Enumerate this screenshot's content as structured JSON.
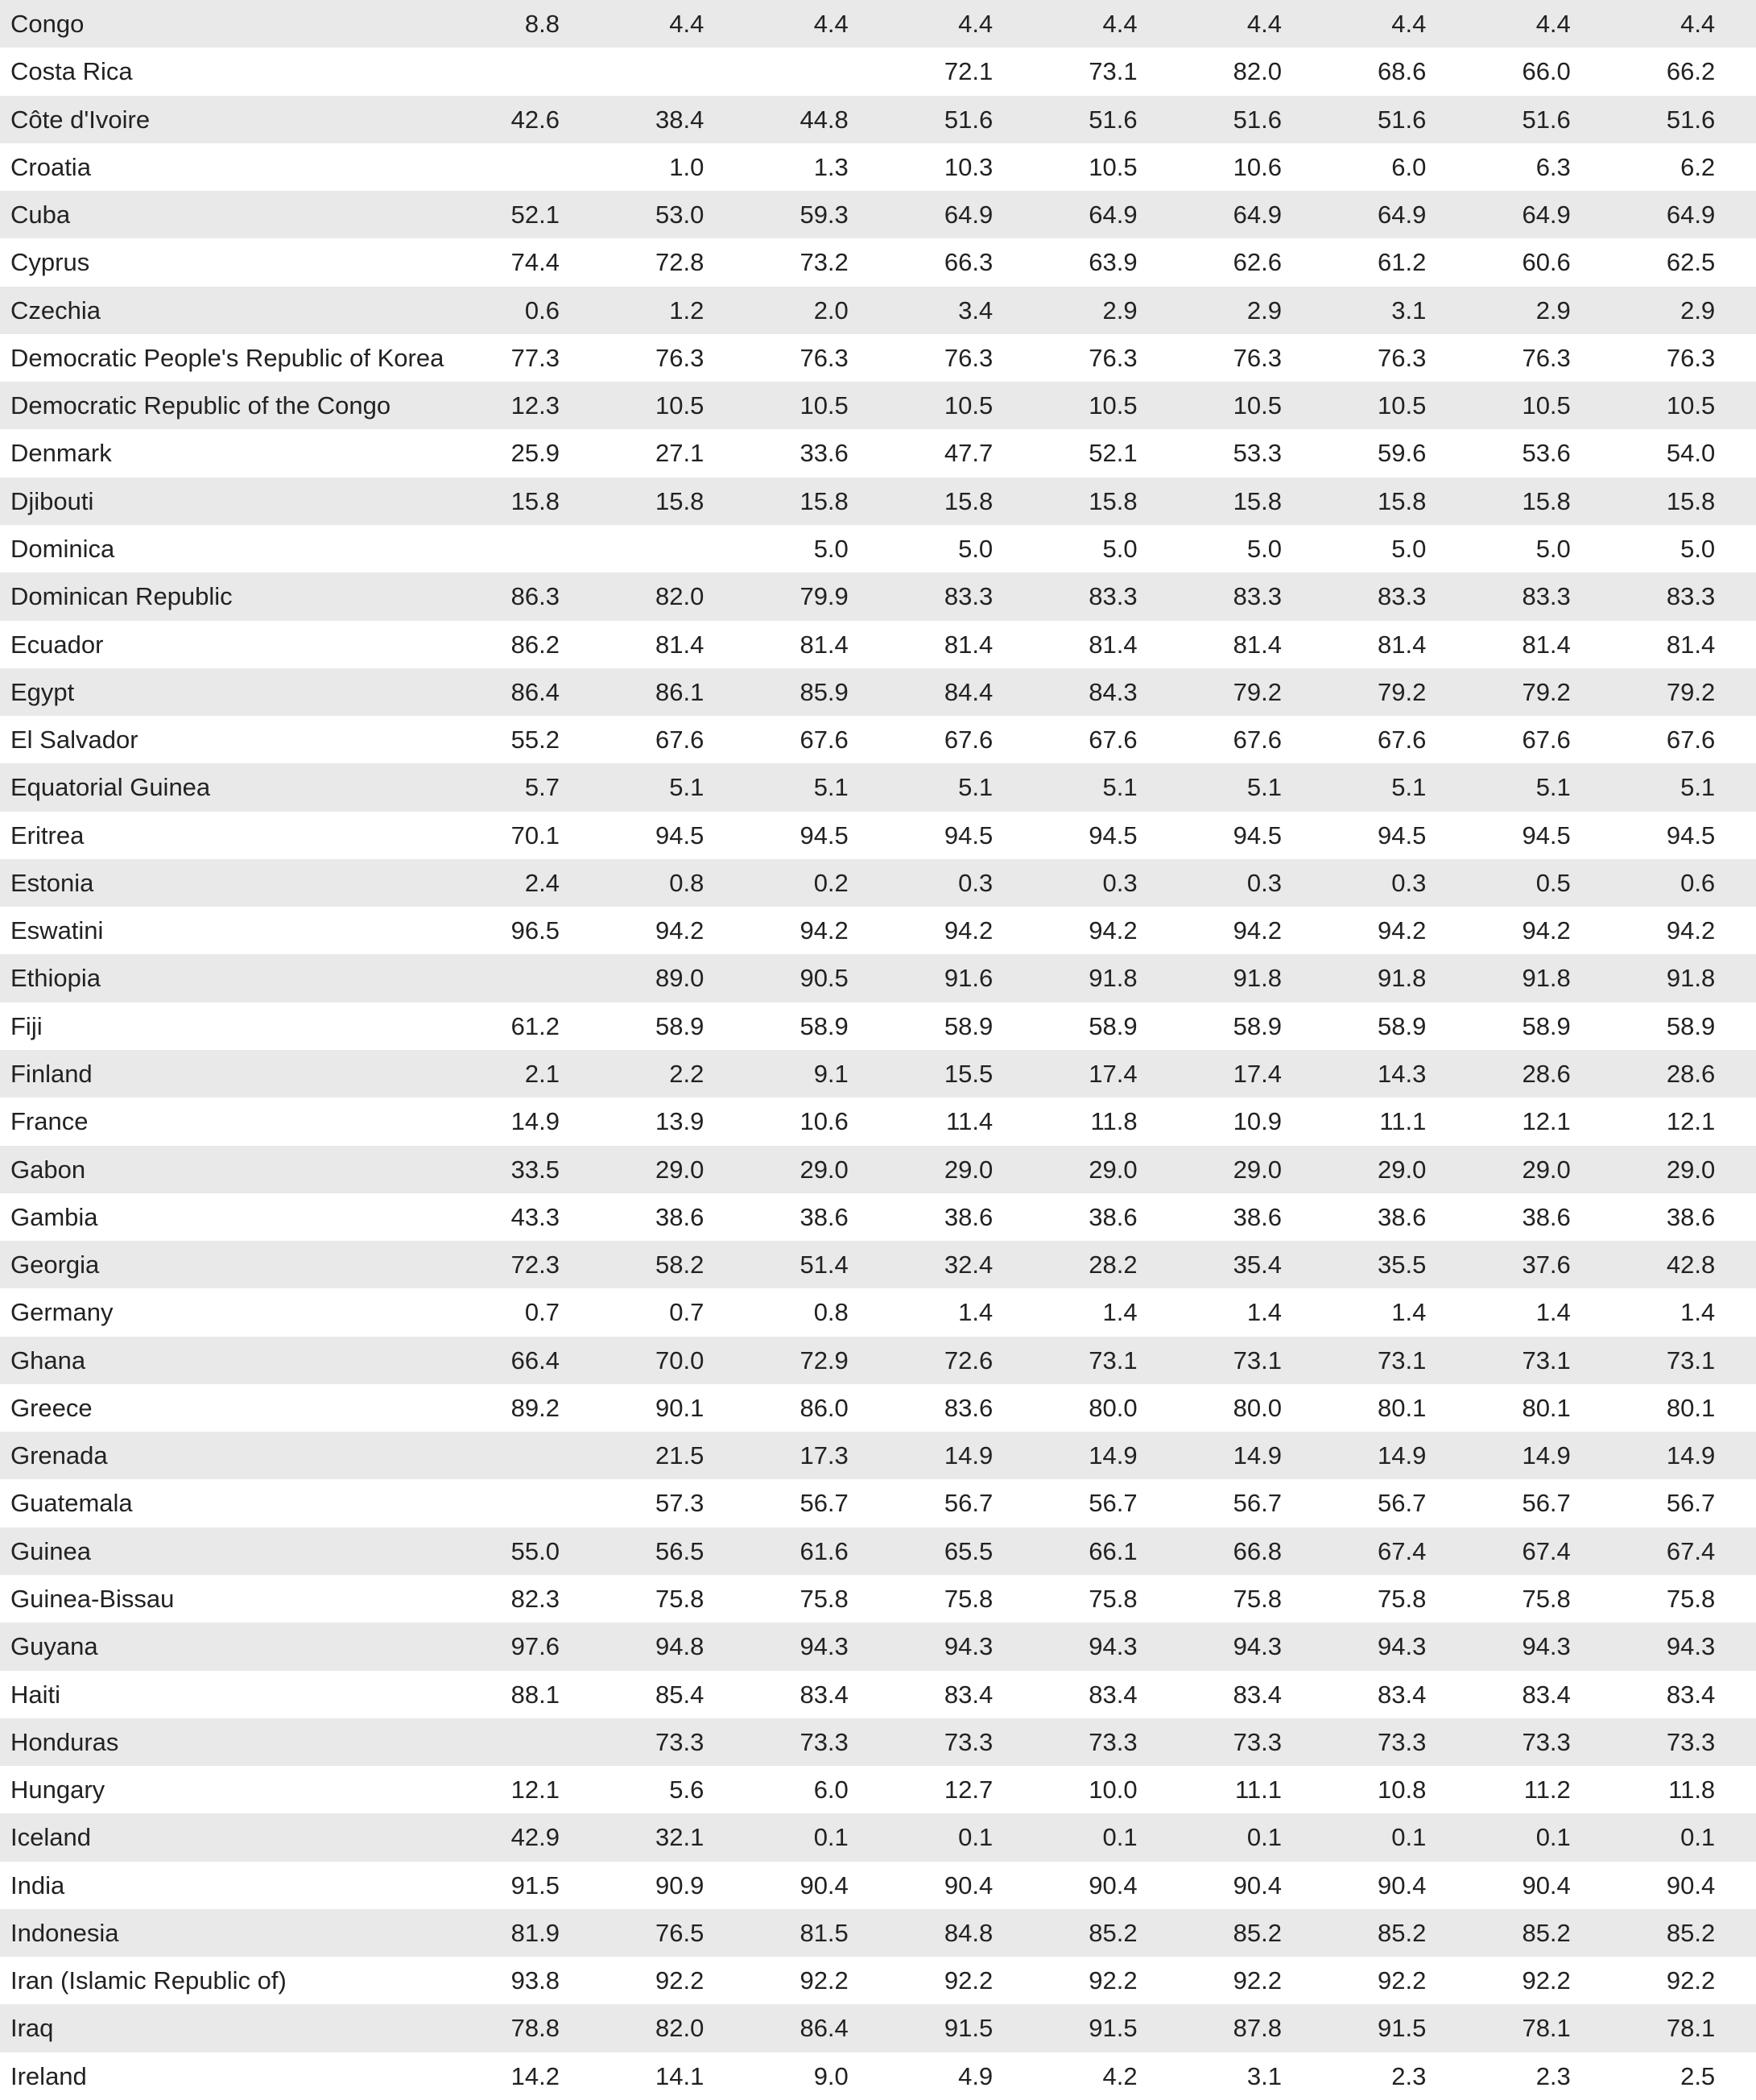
{
  "table": {
    "rows": [
      [
        "Congo",
        "8.8",
        "4.4",
        "4.4",
        "4.4",
        "4.4",
        "4.4",
        "4.4",
        "4.4",
        "4.4"
      ],
      [
        "Costa Rica",
        null,
        null,
        null,
        "72.1",
        "73.1",
        "82.0",
        "68.6",
        "66.0",
        "66.2"
      ],
      [
        "Côte d'Ivoire",
        "42.6",
        "38.4",
        "44.8",
        "51.6",
        "51.6",
        "51.6",
        "51.6",
        "51.6",
        "51.6"
      ],
      [
        "Croatia",
        null,
        "1.0",
        "1.3",
        "10.3",
        "10.5",
        "10.6",
        "6.0",
        "6.3",
        "6.2"
      ],
      [
        "Cuba",
        "52.1",
        "53.0",
        "59.3",
        "64.9",
        "64.9",
        "64.9",
        "64.9",
        "64.9",
        "64.9"
      ],
      [
        "Cyprus",
        "74.4",
        "72.8",
        "73.2",
        "66.3",
        "63.9",
        "62.6",
        "61.2",
        "60.6",
        "62.5"
      ],
      [
        "Czechia",
        "0.6",
        "1.2",
        "2.0",
        "3.4",
        "2.9",
        "2.9",
        "3.1",
        "2.9",
        "2.9"
      ],
      [
        "Democratic People's Republic of Korea",
        "77.3",
        "76.3",
        "76.3",
        "76.3",
        "76.3",
        "76.3",
        "76.3",
        "76.3",
        "76.3"
      ],
      [
        "Democratic Republic of the Congo",
        "12.3",
        "10.5",
        "10.5",
        "10.5",
        "10.5",
        "10.5",
        "10.5",
        "10.5",
        "10.5"
      ],
      [
        "Denmark",
        "25.9",
        "27.1",
        "33.6",
        "47.7",
        "52.1",
        "53.3",
        "59.6",
        "53.6",
        "54.0"
      ],
      [
        "Djibouti",
        "15.8",
        "15.8",
        "15.8",
        "15.8",
        "15.8",
        "15.8",
        "15.8",
        "15.8",
        "15.8"
      ],
      [
        "Dominica",
        null,
        null,
        "5.0",
        "5.0",
        "5.0",
        "5.0",
        "5.0",
        "5.0",
        "5.0"
      ],
      [
        "Dominican Republic",
        "86.3",
        "82.0",
        "79.9",
        "83.3",
        "83.3",
        "83.3",
        "83.3",
        "83.3",
        "83.3"
      ],
      [
        "Ecuador",
        "86.2",
        "81.4",
        "81.4",
        "81.4",
        "81.4",
        "81.4",
        "81.4",
        "81.4",
        "81.4"
      ],
      [
        "Egypt",
        "86.4",
        "86.1",
        "85.9",
        "84.4",
        "84.3",
        "79.2",
        "79.2",
        "79.2",
        "79.2"
      ],
      [
        "El Salvador",
        "55.2",
        "67.6",
        "67.6",
        "67.6",
        "67.6",
        "67.6",
        "67.6",
        "67.6",
        "67.6"
      ],
      [
        "Equatorial Guinea",
        "5.7",
        "5.1",
        "5.1",
        "5.1",
        "5.1",
        "5.1",
        "5.1",
        "5.1",
        "5.1"
      ],
      [
        "Eritrea",
        "70.1",
        "94.5",
        "94.5",
        "94.5",
        "94.5",
        "94.5",
        "94.5",
        "94.5",
        "94.5"
      ],
      [
        "Estonia",
        "2.4",
        "0.8",
        "0.2",
        "0.3",
        "0.3",
        "0.3",
        "0.3",
        "0.5",
        "0.6"
      ],
      [
        "Eswatini",
        "96.5",
        "94.2",
        "94.2",
        "94.2",
        "94.2",
        "94.2",
        "94.2",
        "94.2",
        "94.2"
      ],
      [
        "Ethiopia",
        null,
        "89.0",
        "90.5",
        "91.6",
        "91.8",
        "91.8",
        "91.8",
        "91.8",
        "91.8"
      ],
      [
        "Fiji",
        "61.2",
        "58.9",
        "58.9",
        "58.9",
        "58.9",
        "58.9",
        "58.9",
        "58.9",
        "58.9"
      ],
      [
        "Finland",
        "2.1",
        "2.2",
        "9.1",
        "15.5",
        "17.4",
        "17.4",
        "14.3",
        "28.6",
        "28.6"
      ],
      [
        "France",
        "14.9",
        "13.9",
        "10.6",
        "11.4",
        "11.8",
        "10.9",
        "11.1",
        "12.1",
        "12.1"
      ],
      [
        "Gabon",
        "33.5",
        "29.0",
        "29.0",
        "29.0",
        "29.0",
        "29.0",
        "29.0",
        "29.0",
        "29.0"
      ],
      [
        "Gambia",
        "43.3",
        "38.6",
        "38.6",
        "38.6",
        "38.6",
        "38.6",
        "38.6",
        "38.6",
        "38.6"
      ],
      [
        "Georgia",
        "72.3",
        "58.2",
        "51.4",
        "32.4",
        "28.2",
        "35.4",
        "35.5",
        "37.6",
        "42.8"
      ],
      [
        "Germany",
        "0.7",
        "0.7",
        "0.8",
        "1.4",
        "1.4",
        "1.4",
        "1.4",
        "1.4",
        "1.4"
      ],
      [
        "Ghana",
        "66.4",
        "70.0",
        "72.9",
        "72.6",
        "73.1",
        "73.1",
        "73.1",
        "73.1",
        "73.1"
      ],
      [
        "Greece",
        "89.2",
        "90.1",
        "86.0",
        "83.6",
        "80.0",
        "80.0",
        "80.1",
        "80.1",
        "80.1"
      ],
      [
        "Grenada",
        null,
        "21.5",
        "17.3",
        "14.9",
        "14.9",
        "14.9",
        "14.9",
        "14.9",
        "14.9"
      ],
      [
        "Guatemala",
        null,
        "57.3",
        "56.7",
        "56.7",
        "56.7",
        "56.7",
        "56.7",
        "56.7",
        "56.7"
      ],
      [
        "Guinea",
        "55.0",
        "56.5",
        "61.6",
        "65.5",
        "66.1",
        "66.8",
        "67.4",
        "67.4",
        "67.4"
      ],
      [
        "Guinea-Bissau",
        "82.3",
        "75.8",
        "75.8",
        "75.8",
        "75.8",
        "75.8",
        "75.8",
        "75.8",
        "75.8"
      ],
      [
        "Guyana",
        "97.6",
        "94.8",
        "94.3",
        "94.3",
        "94.3",
        "94.3",
        "94.3",
        "94.3",
        "94.3"
      ],
      [
        "Haiti",
        "88.1",
        "85.4",
        "83.4",
        "83.4",
        "83.4",
        "83.4",
        "83.4",
        "83.4",
        "83.4"
      ],
      [
        "Honduras",
        null,
        "73.3",
        "73.3",
        "73.3",
        "73.3",
        "73.3",
        "73.3",
        "73.3",
        "73.3"
      ],
      [
        "Hungary",
        "12.1",
        "5.6",
        "6.0",
        "12.7",
        "10.0",
        "11.1",
        "10.8",
        "11.2",
        "11.8"
      ],
      [
        "Iceland",
        "42.9",
        "32.1",
        "0.1",
        "0.1",
        "0.1",
        "0.1",
        "0.1",
        "0.1",
        "0.1"
      ],
      [
        "India",
        "91.5",
        "90.9",
        "90.4",
        "90.4",
        "90.4",
        "90.4",
        "90.4",
        "90.4",
        "90.4"
      ],
      [
        "Indonesia",
        "81.9",
        "76.5",
        "81.5",
        "84.8",
        "85.2",
        "85.2",
        "85.2",
        "85.2",
        "85.2"
      ],
      [
        "Iran (Islamic Republic of)",
        "93.8",
        "92.2",
        "92.2",
        "92.2",
        "92.2",
        "92.2",
        "92.2",
        "92.2",
        "92.2"
      ],
      [
        "Iraq",
        "78.8",
        "82.0",
        "86.4",
        "91.5",
        "91.5",
        "87.8",
        "91.5",
        "78.1",
        "78.1"
      ],
      [
        "Ireland",
        "14.2",
        "14.1",
        "9.0",
        "4.9",
        "4.2",
        "3.1",
        "2.3",
        "2.3",
        "2.5"
      ]
    ]
  }
}
